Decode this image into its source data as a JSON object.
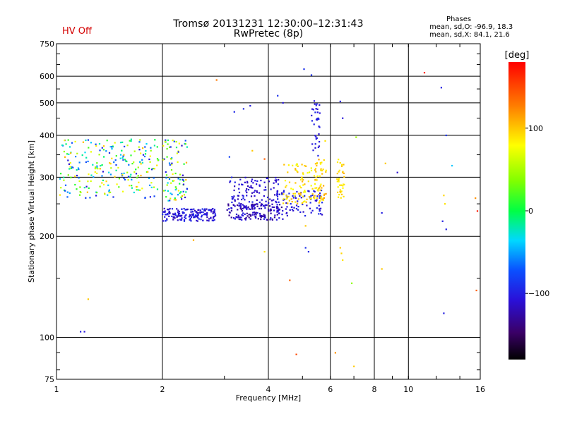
{
  "header": {
    "title": "Tromsø 20131231 12:30:00–12:31:43",
    "subtitle": "RwPretec (8p)",
    "hv_status": "HV Off",
    "stats": {
      "title": "Phases",
      "o_line": "mean, sd,O: -96.9, 18.3",
      "x_line": "mean, sd,X:  84.1, 21.6"
    }
  },
  "colorbar": {
    "unit": "[deg]",
    "range": [
      -180,
      180
    ],
    "ticks": [
      {
        "value": 100,
        "label": "100"
      },
      {
        "value": 0,
        "label": "0"
      },
      {
        "value": -100,
        "label": "−100"
      }
    ]
  },
  "chart_data": {
    "type": "scatter",
    "title": "Tromsø 20131231 12:30:00–12:31:43",
    "subtitle": "RwPretec (8p)",
    "xlabel": "Frequency [MHz]",
    "ylabel": "Stationary phase Virtual Height [km]",
    "xscale": "log",
    "yscale": "log",
    "xlim": [
      1,
      16
    ],
    "ylim": [
      75,
      750
    ],
    "xticks": [
      {
        "value": 1,
        "label": "1"
      },
      {
        "value": 2,
        "label": "2"
      },
      {
        "value": 4,
        "label": "4"
      },
      {
        "value": 6,
        "label": "6"
      },
      {
        "value": 8,
        "label": "8"
      },
      {
        "value": 10,
        "label": "10"
      },
      {
        "value": 16,
        "label": "16"
      }
    ],
    "yticks": [
      {
        "value": 75,
        "label": "75"
      },
      {
        "value": 100,
        "label": "100"
      },
      {
        "value": 200,
        "label": "200"
      },
      {
        "value": 300,
        "label": "300"
      },
      {
        "value": 400,
        "label": "400"
      },
      {
        "value": 500,
        "label": "500"
      },
      {
        "value": 600,
        "label": "600"
      },
      {
        "value": 750,
        "label": "750"
      }
    ],
    "grid": true,
    "color_by": "phase [deg]",
    "clusters": [
      {
        "f": [
          1.02,
          1.95
        ],
        "h": [
          260,
          390
        ],
        "phase": [
          -110,
          110
        ],
        "count": 240
      },
      {
        "f": [
          2.0,
          2.35
        ],
        "h": [
          255,
          390
        ],
        "phase": [
          -120,
          110
        ],
        "count": 90
      },
      {
        "f": [
          2.0,
          2.85
        ],
        "h": [
          222,
          242
        ],
        "phase": [
          -120,
          -90
        ],
        "count": 170
      },
      {
        "f": [
          3.05,
          4.4
        ],
        "h": [
          224,
          250
        ],
        "phase": [
          -135,
          -100
        ],
        "count": 150
      },
      {
        "f": [
          3.1,
          4.3
        ],
        "h": [
          246,
          300
        ],
        "phase": [
          -120,
          -95
        ],
        "count": 110
      },
      {
        "f": [
          4.2,
          5.7
        ],
        "h": [
          230,
          275
        ],
        "phase": [
          -115,
          -90
        ],
        "count": 90
      },
      {
        "f": [
          4.4,
          5.7
        ],
        "h": [
          250,
          330
        ],
        "phase": [
          70,
          110
        ],
        "count": 90
      },
      {
        "f": [
          5.3,
          5.6
        ],
        "h": [
          340,
          520
        ],
        "phase": [
          -110,
          -95
        ],
        "count": 35
      },
      {
        "f": [
          5.4,
          5.9
        ],
        "h": [
          255,
          340
        ],
        "phase": [
          80,
          115
        ],
        "count": 40
      },
      {
        "f": [
          6.25,
          6.6
        ],
        "h": [
          260,
          340
        ],
        "phase": [
          80,
          110
        ],
        "count": 35
      }
    ],
    "points": [
      {
        "f": 3.2,
        "h": 470,
        "phase": -95
      },
      {
        "f": 3.4,
        "h": 480,
        "phase": -95
      },
      {
        "f": 3.55,
        "h": 490,
        "phase": -100
      },
      {
        "f": 4.25,
        "h": 525,
        "phase": -90
      },
      {
        "f": 4.4,
        "h": 500,
        "phase": -105
      },
      {
        "f": 5.05,
        "h": 630,
        "phase": -90
      },
      {
        "f": 5.3,
        "h": 605,
        "phase": -90
      },
      {
        "f": 6.4,
        "h": 505,
        "phase": -100
      },
      {
        "f": 6.5,
        "h": 450,
        "phase": -105
      },
      {
        "f": 5.8,
        "h": 385,
        "phase": 90
      },
      {
        "f": 7.1,
        "h": 395,
        "phase": 45
      },
      {
        "f": 3.6,
        "h": 360,
        "phase": 100
      },
      {
        "f": 3.9,
        "h": 340,
        "phase": 140
      },
      {
        "f": 3.1,
        "h": 345,
        "phase": -80
      },
      {
        "f": 2.85,
        "h": 585,
        "phase": 130
      },
      {
        "f": 11.1,
        "h": 615,
        "phase": 165
      },
      {
        "f": 12.4,
        "h": 555,
        "phase": -100
      },
      {
        "f": 12.8,
        "h": 400,
        "phase": -90
      },
      {
        "f": 13.3,
        "h": 325,
        "phase": -40
      },
      {
        "f": 8.6,
        "h": 330,
        "phase": 100
      },
      {
        "f": 9.3,
        "h": 310,
        "phase": -110
      },
      {
        "f": 8.4,
        "h": 235,
        "phase": -100
      },
      {
        "f": 12.6,
        "h": 265,
        "phase": 95
      },
      {
        "f": 12.7,
        "h": 250,
        "phase": 90
      },
      {
        "f": 12.5,
        "h": 222,
        "phase": -100
      },
      {
        "f": 12.8,
        "h": 210,
        "phase": -100
      },
      {
        "f": 15.5,
        "h": 260,
        "phase": 120
      },
      {
        "f": 15.7,
        "h": 238,
        "phase": 170
      },
      {
        "f": 2.45,
        "h": 195,
        "phase": 110
      },
      {
        "f": 5.1,
        "h": 185,
        "phase": -90
      },
      {
        "f": 5.2,
        "h": 180,
        "phase": -95
      },
      {
        "f": 6.4,
        "h": 185,
        "phase": 100
      },
      {
        "f": 6.45,
        "h": 178,
        "phase": 95
      },
      {
        "f": 6.5,
        "h": 170,
        "phase": 90
      },
      {
        "f": 5.5,
        "h": 260,
        "phase": 90
      },
      {
        "f": 5.6,
        "h": 255,
        "phase": 85
      },
      {
        "f": 6.9,
        "h": 145,
        "phase": 40
      },
      {
        "f": 8.4,
        "h": 160,
        "phase": 100
      },
      {
        "f": 4.6,
        "h": 148,
        "phase": 140
      },
      {
        "f": 15.6,
        "h": 138,
        "phase": 140
      },
      {
        "f": 12.6,
        "h": 118,
        "phase": -100
      },
      {
        "f": 1.17,
        "h": 104,
        "phase": -100
      },
      {
        "f": 1.2,
        "h": 104,
        "phase": -105
      },
      {
        "f": 1.23,
        "h": 130,
        "phase": 100
      },
      {
        "f": 4.8,
        "h": 89,
        "phase": 150
      },
      {
        "f": 6.2,
        "h": 90,
        "phase": 120
      },
      {
        "f": 7.0,
        "h": 82,
        "phase": 100
      },
      {
        "f": 3.9,
        "h": 180,
        "phase": 90
      },
      {
        "f": 5.1,
        "h": 215,
        "phase": 100
      }
    ]
  }
}
